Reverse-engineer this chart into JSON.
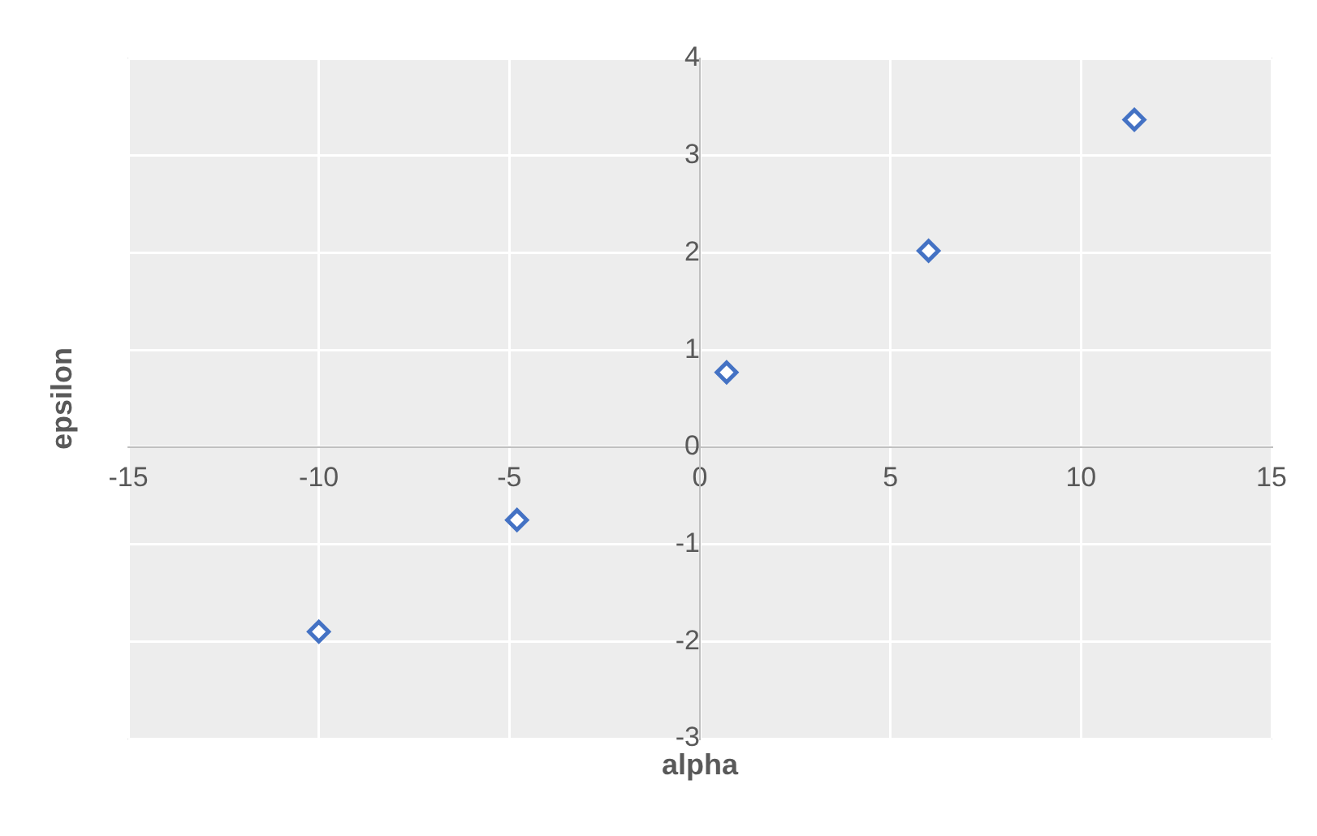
{
  "chart_data": {
    "type": "scatter",
    "xlabel": "alpha",
    "ylabel": "epsilon",
    "series": [
      {
        "color": "#4472c4",
        "x": [
          -10,
          -4.8,
          0.7,
          6,
          11.4
        ],
        "values": [
          -1.9,
          -0.75,
          0.77,
          2.02,
          3.37
        ]
      }
    ],
    "xlim": [
      -15,
      15
    ],
    "ylim": [
      -3,
      4
    ],
    "xticks": [
      -15,
      -10,
      -5,
      0,
      5,
      10,
      15
    ],
    "yticks": [
      -3,
      -2,
      -1,
      0,
      1,
      2,
      3,
      4
    ],
    "grid": true,
    "marker": "diamond"
  }
}
